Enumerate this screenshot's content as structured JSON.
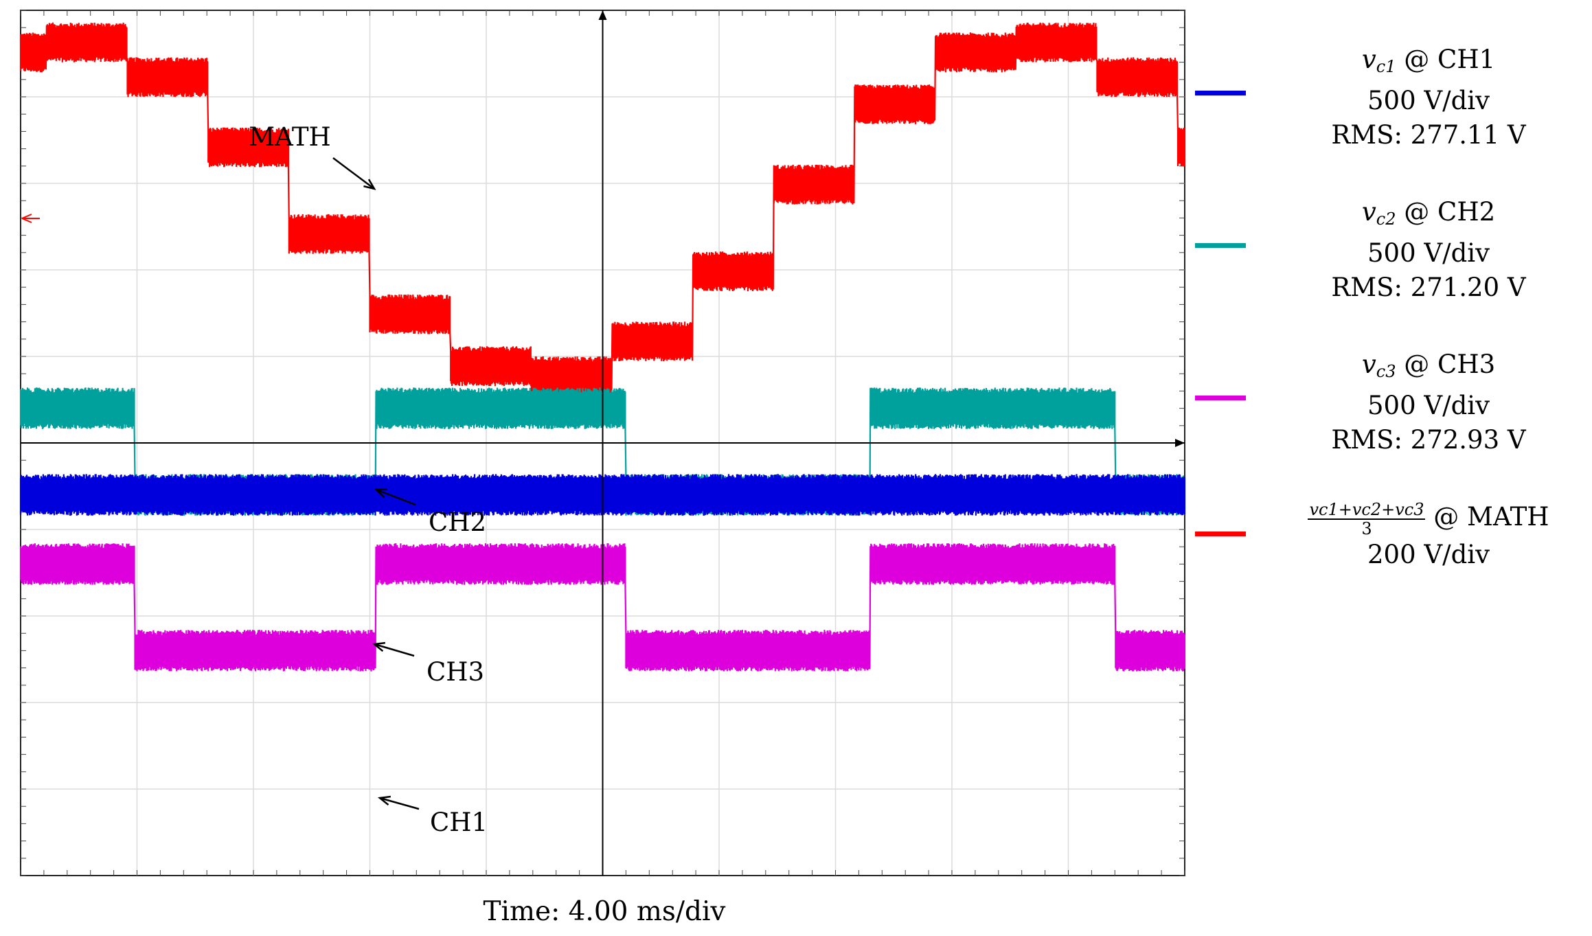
{
  "chart_data": {
    "type": "line",
    "title": "",
    "xlabel": "Time: 4.00 ms/div",
    "ylabel": "",
    "x_divisions": 10,
    "y_divisions": 10,
    "xlim": [
      0,
      10
    ],
    "ylim": [
      -5,
      5
    ],
    "grid": true,
    "legend_position": "right",
    "annotations": [
      "MATH",
      "CH2",
      "CH3",
      "CH1"
    ],
    "series": [
      {
        "name": "vc1 @ CH1",
        "channel": "CH1",
        "scale": "500 V/div",
        "rms": "RMS: 277.11 V",
        "color": "#0000dd",
        "levels_div": [
          -0.6,
          -0.6,
          -1.5,
          -1.5,
          -0.6,
          -0.6,
          -0.6,
          -1.5,
          -1.5,
          -0.6,
          -0.6,
          -1.5
        ],
        "transitions_div": [
          0.98,
          3.05,
          5.2,
          7.3,
          9.4
        ],
        "ripple_div": 0.42
      },
      {
        "name": "vc2 @ CH2",
        "channel": "CH2",
        "scale": "500 V/div",
        "rms": "RMS: 271.20 V",
        "color": "#00a19c",
        "levels_div": [
          0.4,
          -0.6
        ],
        "transitions_div": [
          0.98,
          3.05,
          5.2,
          7.3,
          9.4
        ],
        "ripple_div": 0.42
      },
      {
        "name": "vc3 @ CH3",
        "channel": "CH3",
        "scale": "500 V/div",
        "rms": "RMS: 272.93 V",
        "color": "#dd00dd",
        "levels_div": [
          -1.4,
          -2.4
        ],
        "transitions_div": [
          0.98,
          3.05,
          5.2,
          7.3,
          9.4
        ],
        "ripple_div": 0.42
      },
      {
        "name": "(vc1+vc2+vc3)/3 @ MATH",
        "channel": "MATH",
        "scale": "200 V/div",
        "color": "#ff0000",
        "period_div": 8.33,
        "amplitude_div": 1.95,
        "offset_div": 2.7,
        "steps_per_period": 12,
        "ripple_div": 0.4
      }
    ]
  },
  "legend": [
    {
      "symbol": "v",
      "sub": "c1",
      "rest": " @ CH1",
      "line2": "500 V/div",
      "line3": "RMS: 277.11 V",
      "color": "#0000dd"
    },
    {
      "symbol": "v",
      "sub": "c2",
      "rest": " @ CH2",
      "line2": "500 V/div",
      "line3": "RMS: 271.20 V",
      "color": "#00a19c"
    },
    {
      "symbol": "v",
      "sub": "c3",
      "rest": " @ CH3",
      "line2": "500 V/div",
      "line3": "RMS: 272.93 V",
      "color": "#dd00dd"
    },
    {
      "frac_num": "vc1+vc2+vc3",
      "frac_den": "3",
      "rest": " @ MATH",
      "line2": "200 V/div",
      "color": "#ff0000"
    }
  ],
  "labels": {
    "math": "MATH",
    "ch2": "CH2",
    "ch3": "CH3",
    "ch1": "CH1",
    "time": "Time: 4.00 ms/div"
  }
}
